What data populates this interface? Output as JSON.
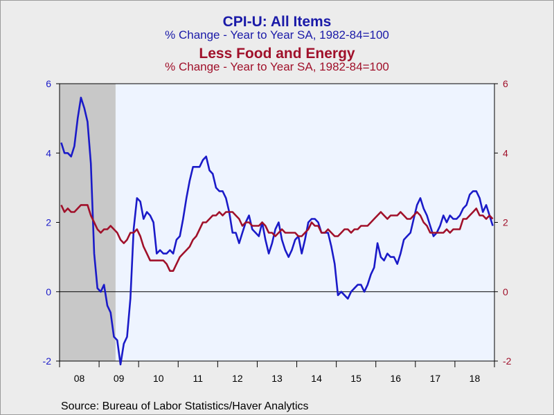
{
  "titles": {
    "line1": "CPI-U: All Items",
    "line2": "% Change - Year to Year    SA, 1982-84=100",
    "line3": "Less Food and Energy",
    "line4": "% Change - Year to Year    SA, 1982-84=100"
  },
  "source": "Source:  Bureau of Labor Statistics/Haver Analytics",
  "colors": {
    "cpi_all": "#1a1ac8",
    "core": "#a0102a",
    "plot_bg": "#eef4ff",
    "recession": "#c8c8c8"
  },
  "chart_data": {
    "type": "line",
    "x_start": "2008-01",
    "frequency": "monthly",
    "xlim": [
      "2008-01",
      "2018-12"
    ],
    "ylim": [
      -2,
      6
    ],
    "left_ticks": [
      -2,
      0,
      2,
      4,
      6
    ],
    "right_ticks": [
      -2,
      0,
      2,
      4,
      6
    ],
    "x_tick_labels": [
      "08",
      "09",
      "10",
      "11",
      "12",
      "13",
      "14",
      "15",
      "16",
      "17",
      "18"
    ],
    "recession": [
      "2008-01",
      "2009-06"
    ],
    "zero_line": true,
    "series": [
      {
        "key": "cpi_all",
        "axis": "left",
        "values": [
          4.3,
          4.0,
          4.0,
          3.9,
          4.2,
          5.0,
          5.6,
          5.3,
          4.9,
          3.7,
          1.1,
          0.1,
          0.0,
          0.2,
          -0.4,
          -0.6,
          -1.3,
          -1.4,
          -2.1,
          -1.5,
          -1.3,
          -0.2,
          1.8,
          2.7,
          2.6,
          2.1,
          2.3,
          2.2,
          2.0,
          1.1,
          1.2,
          1.1,
          1.1,
          1.2,
          1.1,
          1.5,
          1.6,
          2.1,
          2.7,
          3.2,
          3.6,
          3.6,
          3.6,
          3.8,
          3.9,
          3.5,
          3.4,
          3.0,
          2.9,
          2.9,
          2.7,
          2.3,
          1.7,
          1.7,
          1.4,
          1.7,
          2.0,
          2.2,
          1.8,
          1.7,
          1.6,
          2.0,
          1.5,
          1.1,
          1.4,
          1.8,
          2.0,
          1.5,
          1.2,
          1.0,
          1.2,
          1.5,
          1.6,
          1.1,
          1.5,
          2.0,
          2.1,
          2.1,
          2.0,
          1.7,
          1.7,
          1.7,
          1.3,
          0.8,
          -0.1,
          0.0,
          -0.1,
          -0.2,
          0.0,
          0.1,
          0.2,
          0.2,
          0.0,
          0.2,
          0.5,
          0.7,
          1.4,
          1.0,
          0.9,
          1.1,
          1.0,
          1.0,
          0.8,
          1.1,
          1.5,
          1.6,
          1.7,
          2.1,
          2.5,
          2.7,
          2.4,
          2.2,
          1.9,
          1.6,
          1.7,
          1.9,
          2.2,
          2.0,
          2.2,
          2.1,
          2.1,
          2.2,
          2.4,
          2.5,
          2.8,
          2.9,
          2.9,
          2.7,
          2.3,
          2.5,
          2.2,
          1.9
        ]
      },
      {
        "key": "core",
        "axis": "right",
        "values": [
          2.5,
          2.3,
          2.4,
          2.3,
          2.3,
          2.4,
          2.5,
          2.5,
          2.5,
          2.2,
          2.0,
          1.8,
          1.7,
          1.8,
          1.8,
          1.9,
          1.8,
          1.7,
          1.5,
          1.4,
          1.5,
          1.7,
          1.7,
          1.8,
          1.6,
          1.3,
          1.1,
          0.9,
          0.9,
          0.9,
          0.9,
          0.9,
          0.8,
          0.6,
          0.6,
          0.8,
          1.0,
          1.1,
          1.2,
          1.3,
          1.5,
          1.6,
          1.8,
          2.0,
          2.0,
          2.1,
          2.2,
          2.2,
          2.3,
          2.2,
          2.3,
          2.3,
          2.3,
          2.2,
          2.1,
          1.9,
          2.0,
          2.0,
          1.9,
          1.9,
          1.9,
          2.0,
          1.9,
          1.7,
          1.7,
          1.6,
          1.7,
          1.8,
          1.7,
          1.7,
          1.7,
          1.7,
          1.6,
          1.6,
          1.7,
          1.8,
          2.0,
          1.9,
          1.9,
          1.7,
          1.7,
          1.8,
          1.7,
          1.6,
          1.6,
          1.7,
          1.8,
          1.8,
          1.7,
          1.8,
          1.8,
          1.9,
          1.9,
          1.9,
          2.0,
          2.1,
          2.2,
          2.3,
          2.2,
          2.1,
          2.2,
          2.2,
          2.2,
          2.3,
          2.2,
          2.1,
          2.1,
          2.2,
          2.3,
          2.2,
          2.0,
          1.9,
          1.7,
          1.7,
          1.7,
          1.7,
          1.7,
          1.8,
          1.7,
          1.8,
          1.8,
          1.8,
          2.1,
          2.1,
          2.2,
          2.3,
          2.4,
          2.2,
          2.2,
          2.1,
          2.2,
          2.1
        ]
      }
    ]
  }
}
